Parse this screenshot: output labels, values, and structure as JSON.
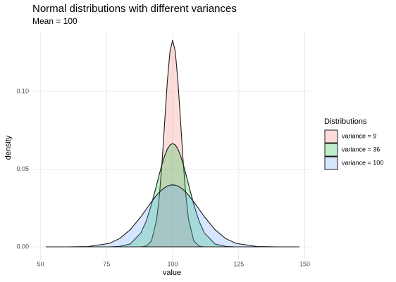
{
  "chart_data": {
    "type": "area",
    "title": "Normal distributions with different variances",
    "subtitle": "Mean = 100",
    "x_label": "value",
    "y_label": "density",
    "legend_title": "Distributions",
    "legend": "right",
    "grid": true,
    "x": [
      52,
      60,
      68,
      76,
      80,
      84,
      88,
      90,
      92,
      94,
      95,
      96,
      97,
      98,
      99,
      100,
      101,
      102,
      103,
      104,
      105,
      106,
      108,
      110,
      112,
      116,
      120,
      124,
      132,
      140,
      148
    ],
    "series": [
      {
        "name": "variance = 9",
        "color": "#f8766d",
        "values": [
          0,
          0,
          0,
          0,
          0,
          0,
          0,
          0.0005,
          0.0038,
          0.018,
          0.0332,
          0.0547,
          0.0807,
          0.1065,
          0.1258,
          0.133,
          0.1258,
          0.1065,
          0.0807,
          0.0547,
          0.0332,
          0.018,
          0.0038,
          0.0005,
          0,
          0,
          0,
          0,
          0,
          0,
          0
        ]
      },
      {
        "name": "variance = 36",
        "color": "#00ba38",
        "values": [
          0,
          0,
          0,
          0,
          0.0003,
          0.0019,
          0.009,
          0.0166,
          0.0273,
          0.0403,
          0.047,
          0.0532,
          0.0587,
          0.0629,
          0.0656,
          0.0665,
          0.0656,
          0.0629,
          0.0587,
          0.0532,
          0.047,
          0.0403,
          0.0273,
          0.0166,
          0.009,
          0.0019,
          0.0003,
          0,
          0,
          0,
          0
        ]
      },
      {
        "name": "variance = 100",
        "color": "#619cff",
        "values": [
          0,
          0,
          0.0002,
          0.0022,
          0.0054,
          0.0111,
          0.0194,
          0.0242,
          0.029,
          0.0333,
          0.0352,
          0.0368,
          0.0381,
          0.0391,
          0.0397,
          0.0399,
          0.0397,
          0.0391,
          0.0381,
          0.0368,
          0.0352,
          0.0333,
          0.029,
          0.0242,
          0.0194,
          0.0111,
          0.0054,
          0.0022,
          0.0002,
          0,
          0
        ]
      }
    ],
    "xlim": [
      47.2,
      152.8
    ],
    "xticks": [
      50,
      75,
      100,
      125,
      150
    ],
    "ylim": [
      -0.0086,
      0.1385
    ],
    "yticks": [
      {
        "value": 0,
        "label": "0.00"
      },
      0.05,
      {
        "value": 0.1,
        "label": "0.10"
      }
    ]
  }
}
